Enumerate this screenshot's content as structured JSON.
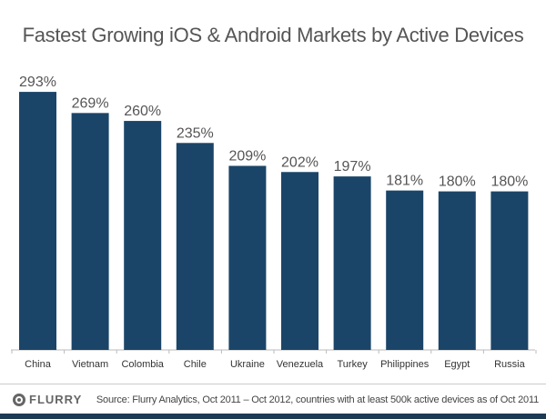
{
  "chart_data": {
    "type": "bar",
    "title": "Fastest Growing iOS & Android Markets by Active Devices",
    "categories": [
      "China",
      "Vietnam",
      "Colombia",
      "Chile",
      "Ukraine",
      "Venezuela",
      "Turkey",
      "Philippines",
      "Egypt",
      "Russia"
    ],
    "values": [
      293,
      269,
      260,
      235,
      209,
      202,
      197,
      181,
      180,
      180
    ],
    "labels": [
      "293%",
      "269%",
      "260%",
      "235%",
      "209%",
      "202%",
      "197%",
      "181%",
      "180%",
      "180%"
    ],
    "xlabel": "",
    "ylabel": "",
    "ylim": [
      0,
      300
    ],
    "bar_color": "#1b4568",
    "grid": false
  },
  "footer": {
    "logo": "FLURRY",
    "source": "Source: Flurry Analytics, Oct 2011 – Oct 2012, countries with at least 500k active devices as of Oct 2011"
  }
}
